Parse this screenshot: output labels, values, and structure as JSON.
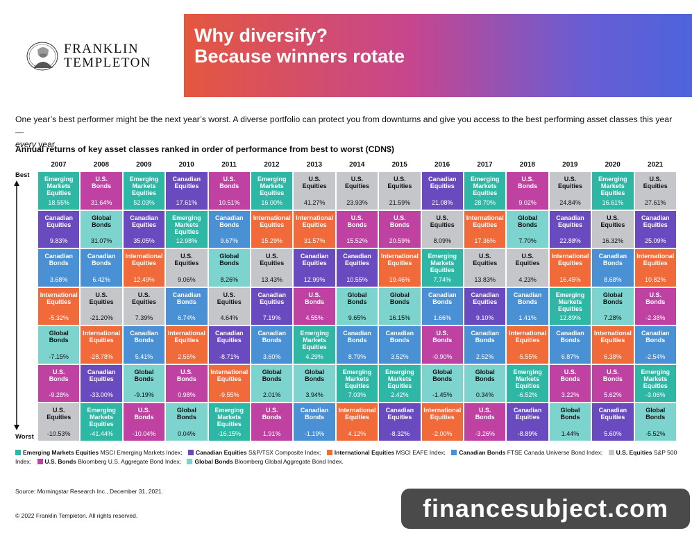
{
  "brand": {
    "line1": "FRANKLIN",
    "line2": "TEMPLETON"
  },
  "banner": {
    "line1": "Why diversify?",
    "line2": "Because winners rotate"
  },
  "intro": {
    "text": "One year’s best performer might be the next year’s worst. A diverse portfolio can protect you from downturns and give you access to the best performing asset classes this year—",
    "emph": "every",
    "tail": " year."
  },
  "subtitle": "Annual returns of key asset classes ranked in order of performance from best to worst (CDN$)",
  "axis": {
    "best": "Best",
    "worst": "Worst"
  },
  "colors": {
    "Emerging Markets Equities": "#2fb7a5",
    "Canadian Equities": "#6a4bbf",
    "International Equities": "#f06a3a",
    "Canadian Bonds": "#4a90d4",
    "U.S. Equities": "#c4c6ca",
    "U.S. Bonds": "#bf42a3",
    "Global Bonds": "#7dd3cd"
  },
  "chart_data": {
    "type": "table",
    "title": "Annual returns of key asset classes ranked in order of performance from best to worst (CDN$)",
    "years": [
      "2007",
      "2008",
      "2009",
      "2010",
      "2011",
      "2012",
      "2013",
      "2014",
      "2015",
      "2016",
      "2017",
      "2018",
      "2019",
      "2020",
      "2021"
    ],
    "columns": [
      [
        {
          "n": "Emerging Markets Equities",
          "v": "18.55%"
        },
        {
          "n": "Canadian Equities",
          "v": "9.83%"
        },
        {
          "n": "Canadian Bonds",
          "v": "3.68%"
        },
        {
          "n": "International Equities",
          "v": "-5.32%"
        },
        {
          "n": "Global Bonds",
          "v": "-7.15%"
        },
        {
          "n": "U.S. Bonds",
          "v": "-9.28%"
        },
        {
          "n": "U.S. Equities",
          "v": "-10.53%"
        }
      ],
      [
        {
          "n": "U.S. Bonds",
          "v": "31.64%"
        },
        {
          "n": "Global Bonds",
          "v": "31.07%"
        },
        {
          "n": "Canadian Bonds",
          "v": "6.42%"
        },
        {
          "n": "U.S. Equities",
          "v": "-21.20%"
        },
        {
          "n": "International Equities",
          "v": "-28.78%"
        },
        {
          "n": "Canadian Equities",
          "v": "-33.00%"
        },
        {
          "n": "Emerging Markets Equities",
          "v": "-41.44%"
        }
      ],
      [
        {
          "n": "Emerging Markets Equities",
          "v": "52.03%"
        },
        {
          "n": "Canadian Equities",
          "v": "35.05%"
        },
        {
          "n": "International Equities",
          "v": "12.49%"
        },
        {
          "n": "U.S. Equities",
          "v": "7.39%"
        },
        {
          "n": "Canadian Bonds",
          "v": "5.41%"
        },
        {
          "n": "Global Bonds",
          "v": "-9.19%"
        },
        {
          "n": "U.S. Bonds",
          "v": "-10.04%"
        }
      ],
      [
        {
          "n": "Canadian Equities",
          "v": "17.61%"
        },
        {
          "n": "Emerging Markets Equities",
          "v": "12.98%"
        },
        {
          "n": "U.S. Equities",
          "v": "9.06%"
        },
        {
          "n": "Canadian Bonds",
          "v": "6.74%"
        },
        {
          "n": "International Equities",
          "v": "2.56%"
        },
        {
          "n": "U.S. Bonds",
          "v": "0.98%"
        },
        {
          "n": "Global Bonds",
          "v": "0.04%"
        }
      ],
      [
        {
          "n": "U.S. Bonds",
          "v": "10.51%"
        },
        {
          "n": "Canadian Bonds",
          "v": "9.67%"
        },
        {
          "n": "Global Bonds",
          "v": "8.26%"
        },
        {
          "n": "U.S. Equities",
          "v": "4.64%"
        },
        {
          "n": "Canadian Equities",
          "v": "-8.71%"
        },
        {
          "n": "International Equities",
          "v": "-9.55%"
        },
        {
          "n": "Emerging Markets Equities",
          "v": "-16.15%"
        }
      ],
      [
        {
          "n": "Emerging Markets Equities",
          "v": "16.00%"
        },
        {
          "n": "International Equities",
          "v": "15.29%"
        },
        {
          "n": "U.S. Equities",
          "v": "13.43%"
        },
        {
          "n": "Canadian Equities",
          "v": "7.19%"
        },
        {
          "n": "Canadian Bonds",
          "v": "3.60%"
        },
        {
          "n": "Global Bonds",
          "v": "2.01%"
        },
        {
          "n": "U.S. Bonds",
          "v": "1.91%"
        }
      ],
      [
        {
          "n": "U.S. Equities",
          "v": "41.27%"
        },
        {
          "n": "International Equities",
          "v": "31.57%"
        },
        {
          "n": "Canadian Equities",
          "v": "12.99%"
        },
        {
          "n": "U.S. Bonds",
          "v": "4.55%"
        },
        {
          "n": "Emerging Markets Equities",
          "v": "4.29%"
        },
        {
          "n": "Global Bonds",
          "v": "3.94%"
        },
        {
          "n": "Canadian Bonds",
          "v": "-1.19%"
        }
      ],
      [
        {
          "n": "U.S. Equities",
          "v": "23.93%"
        },
        {
          "n": "U.S. Bonds",
          "v": "15.52%"
        },
        {
          "n": "Canadian Equities",
          "v": "10.55%"
        },
        {
          "n": "Global Bonds",
          "v": "9.65%"
        },
        {
          "n": "Canadian Bonds",
          "v": "8.79%"
        },
        {
          "n": "Emerging Markets Equities",
          "v": "7.03%"
        },
        {
          "n": "International Equities",
          "v": "4.12%"
        }
      ],
      [
        {
          "n": "U.S. Equities",
          "v": "21.59%"
        },
        {
          "n": "U.S. Bonds",
          "v": "20.59%"
        },
        {
          "n": "International Equities",
          "v": "19.46%"
        },
        {
          "n": "Global Bonds",
          "v": "16.15%"
        },
        {
          "n": "Canadian Bonds",
          "v": "3.52%"
        },
        {
          "n": "Emerging Markets Equities",
          "v": "2.42%"
        },
        {
          "n": "Canadian Equities",
          "v": "-8.32%"
        }
      ],
      [
        {
          "n": "Canadian Equities",
          "v": "21.08%"
        },
        {
          "n": "U.S. Equities",
          "v": "8.09%"
        },
        {
          "n": "Emerging Markets Equities",
          "v": "7.74%"
        },
        {
          "n": "Canadian Bonds",
          "v": "1.66%"
        },
        {
          "n": "U.S. Bonds",
          "v": "-0.90%"
        },
        {
          "n": "Global Bonds",
          "v": "-1.45%"
        },
        {
          "n": "International Equities",
          "v": "-2.00%"
        }
      ],
      [
        {
          "n": "Emerging Markets Equities",
          "v": "28.70%"
        },
        {
          "n": "International Equities",
          "v": "17.36%"
        },
        {
          "n": "U.S. Equities",
          "v": "13.83%"
        },
        {
          "n": "Canadian Equities",
          "v": "9.10%"
        },
        {
          "n": "Canadian Bonds",
          "v": "2.52%"
        },
        {
          "n": "Global Bonds",
          "v": "0.34%"
        },
        {
          "n": "U.S. Bonds",
          "v": "-3.26%"
        }
      ],
      [
        {
          "n": "U.S. Bonds",
          "v": "9.02%"
        },
        {
          "n": "Global Bonds",
          "v": "7.70%"
        },
        {
          "n": "U.S. Equities",
          "v": "4.23%"
        },
        {
          "n": "Canadian Bonds",
          "v": "1.41%"
        },
        {
          "n": "International Equities",
          "v": "-5.55%"
        },
        {
          "n": "Emerging Markets Equities",
          "v": "-6.52%"
        },
        {
          "n": "Canadian Equities",
          "v": "-8.89%"
        }
      ],
      [
        {
          "n": "U.S. Equities",
          "v": "24.84%"
        },
        {
          "n": "Canadian Equities",
          "v": "22.88%"
        },
        {
          "n": "International Equities",
          "v": "16.45%"
        },
        {
          "n": "Emerging Markets Equities",
          "v": "12.89%"
        },
        {
          "n": "Canadian Bonds",
          "v": "6.87%"
        },
        {
          "n": "U.S. Bonds",
          "v": "3.22%"
        },
        {
          "n": "Global Bonds",
          "v": "1.44%"
        }
      ],
      [
        {
          "n": "Emerging Markets Equities",
          "v": "16.61%"
        },
        {
          "n": "U.S. Equities",
          "v": "16.32%"
        },
        {
          "n": "Canadian Bonds",
          "v": "8.68%"
        },
        {
          "n": "Global Bonds",
          "v": "7.28%"
        },
        {
          "n": "International Equities",
          "v": "6.38%"
        },
        {
          "n": "U.S. Bonds",
          "v": "5.62%"
        },
        {
          "n": "Canadian Equities",
          "v": "5.60%"
        }
      ],
      [
        {
          "n": "U.S. Equities",
          "v": "27.61%"
        },
        {
          "n": "Canadian Equities",
          "v": "25.09%"
        },
        {
          "n": "International Equities",
          "v": "10.82%"
        },
        {
          "n": "U.S. Bonds",
          "v": "-2.38%"
        },
        {
          "n": "Canadian Bonds",
          "v": "-2.54%"
        },
        {
          "n": "Emerging Markets Equities",
          "v": "-3.06%"
        },
        {
          "n": "Global Bonds",
          "v": "-5.52%"
        }
      ]
    ]
  },
  "legend": [
    {
      "name": "Emerging Markets Equities",
      "desc": "MSCI Emerging Markets Index;"
    },
    {
      "name": "Canadian Equities",
      "desc": "S&P/TSX Composite Index;"
    },
    {
      "name": "International Equities",
      "desc": "MSCI EAFE Index;"
    },
    {
      "name": "Canadian Bonds",
      "desc": "FTSE Canada Universe Bond Index;"
    },
    {
      "name": "U.S. Equities",
      "desc": "S&P 500 Index;"
    },
    {
      "name": "U.S. Bonds",
      "desc": "Bloomberg U.S. Aggregate Bond Index;"
    },
    {
      "name": "Global Bonds",
      "desc": "Bloomberg Global Aggregate Bond Index."
    }
  ],
  "source": "Source: Morningstar Research Inc., December 31, 2021.",
  "copyright": "© 2022 Franklin Templeton. All rights reserved.",
  "watermark": "financesubject.com"
}
